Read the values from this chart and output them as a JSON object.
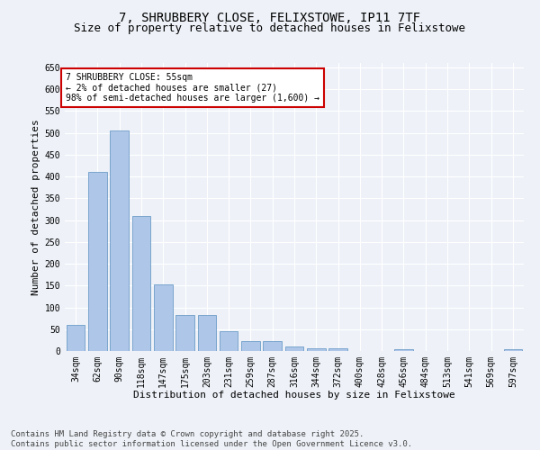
{
  "title_line1": "7, SHRUBBERY CLOSE, FELIXSTOWE, IP11 7TF",
  "title_line2": "Size of property relative to detached houses in Felixstowe",
  "xlabel": "Distribution of detached houses by size in Felixstowe",
  "ylabel": "Number of detached properties",
  "categories": [
    "34sqm",
    "62sqm",
    "90sqm",
    "118sqm",
    "147sqm",
    "175sqm",
    "203sqm",
    "231sqm",
    "259sqm",
    "287sqm",
    "316sqm",
    "344sqm",
    "372sqm",
    "400sqm",
    "428sqm",
    "456sqm",
    "484sqm",
    "513sqm",
    "541sqm",
    "569sqm",
    "597sqm"
  ],
  "values": [
    60,
    410,
    505,
    310,
    153,
    83,
    83,
    45,
    22,
    22,
    10,
    7,
    6,
    0,
    0,
    5,
    0,
    0,
    0,
    0,
    5
  ],
  "bar_color": "#aec6e8",
  "bar_edge_color": "#5a8fc0",
  "annotation_box_text": "7 SHRUBBERY CLOSE: 55sqm\n← 2% of detached houses are smaller (27)\n98% of semi-detached houses are larger (1,600) →",
  "annotation_box_color": "#ffffff",
  "annotation_box_edge_color": "#cc0000",
  "footer_line1": "Contains HM Land Registry data © Crown copyright and database right 2025.",
  "footer_line2": "Contains public sector information licensed under the Open Government Licence v3.0.",
  "ylim": [
    0,
    660
  ],
  "yticks": [
    0,
    50,
    100,
    150,
    200,
    250,
    300,
    350,
    400,
    450,
    500,
    550,
    600,
    650
  ],
  "bg_color": "#eef2f8",
  "plot_bg_color": "#eef2f8",
  "grid_color": "#ffffff",
  "title_fontsize": 10,
  "subtitle_fontsize": 9,
  "axis_label_fontsize": 8,
  "tick_fontsize": 7,
  "footer_fontsize": 6.5,
  "annot_fontsize": 7
}
